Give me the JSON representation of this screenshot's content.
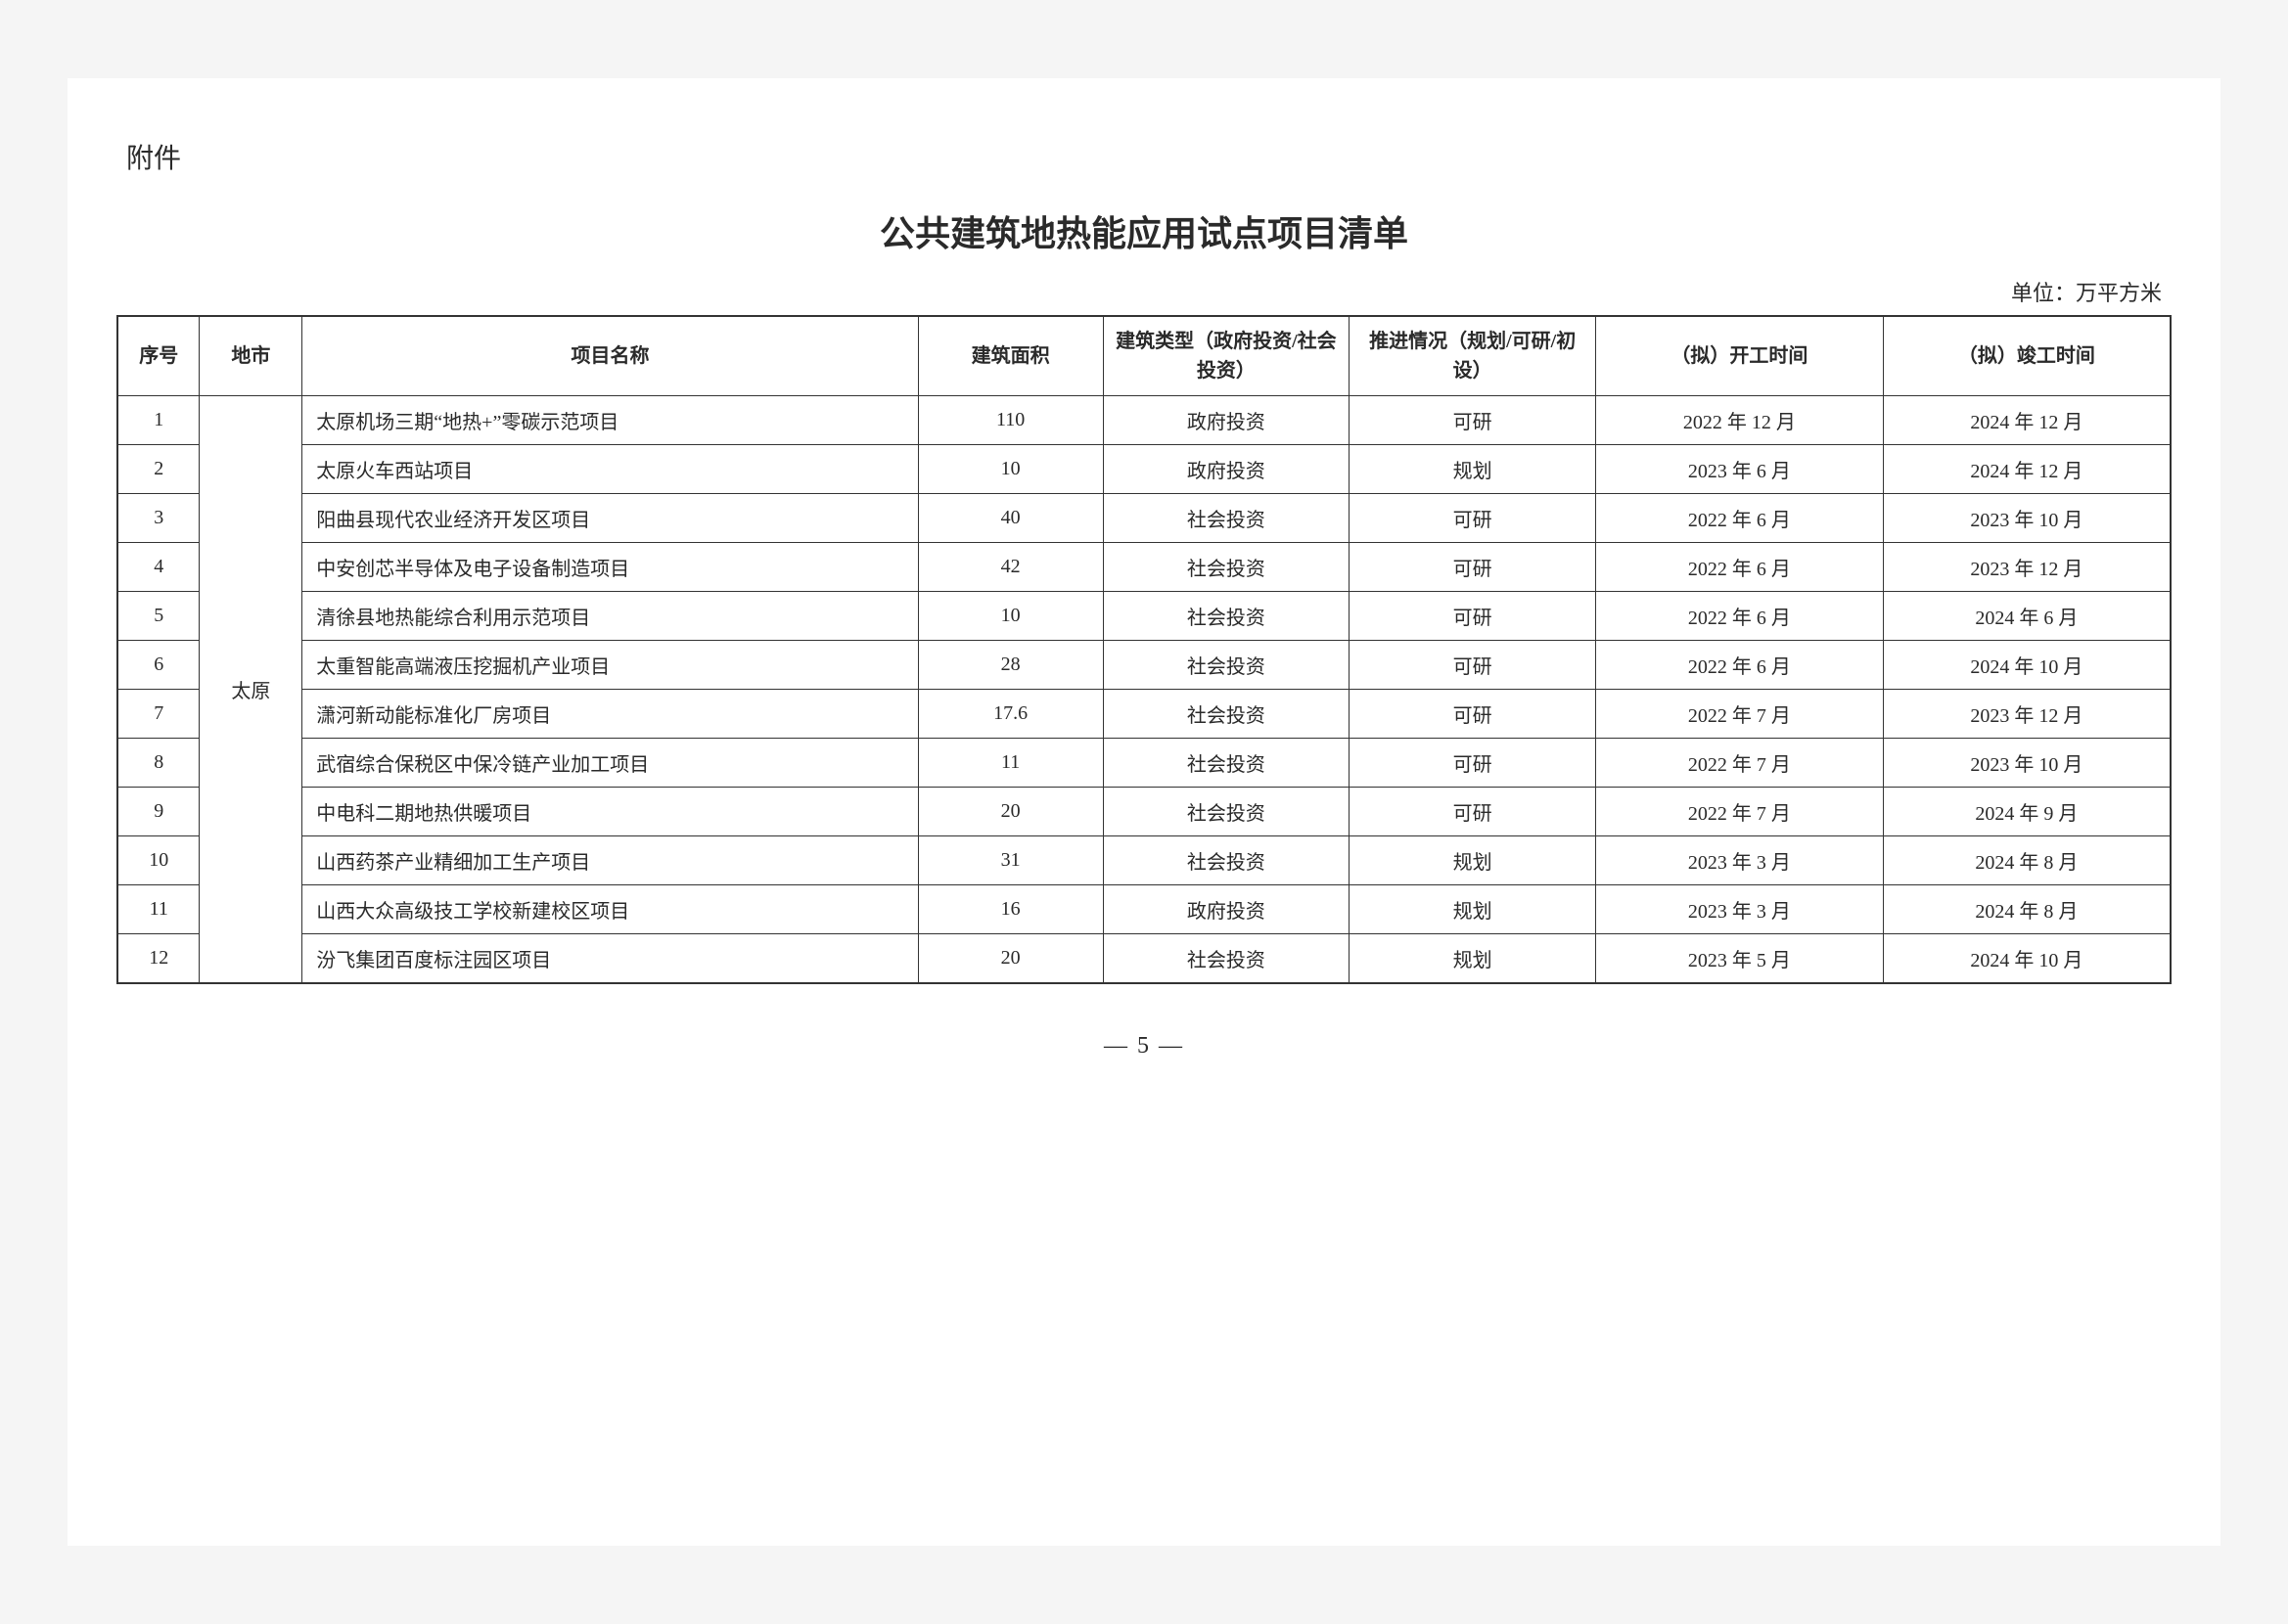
{
  "appendix_label": "附件",
  "title": "公共建筑地热能应用试点项目清单",
  "unit_label": "单位：万平方米",
  "page_number": "— 5 —",
  "table": {
    "columns": [
      {
        "key": "seq",
        "label": "序号",
        "width": "4%",
        "align": "center"
      },
      {
        "key": "city",
        "label": "地市",
        "width": "5%",
        "align": "center"
      },
      {
        "key": "name",
        "label": "项目名称",
        "width": "30%",
        "align": "left"
      },
      {
        "key": "area",
        "label": "建筑面积",
        "width": "9%",
        "align": "center"
      },
      {
        "key": "type",
        "label": "建筑类型（政府投资/社会投资）",
        "width": "12%",
        "align": "center"
      },
      {
        "key": "status",
        "label": "推进情况（规划/可研/初设）",
        "width": "12%",
        "align": "center"
      },
      {
        "key": "start",
        "label": "（拟）开工时间",
        "width": "14%",
        "align": "center"
      },
      {
        "key": "end",
        "label": "（拟）竣工时间",
        "width": "14%",
        "align": "center"
      }
    ],
    "city_span": {
      "city": "太原",
      "rowspan": 12
    },
    "rows": [
      {
        "seq": "1",
        "name": "太原机场三期“地热+”零碳示范项目",
        "area": "110",
        "type": "政府投资",
        "status": "可研",
        "start": "2022 年 12 月",
        "end": "2024 年 12 月"
      },
      {
        "seq": "2",
        "name": "太原火车西站项目",
        "area": "10",
        "type": "政府投资",
        "status": "规划",
        "start": "2023 年 6 月",
        "end": "2024 年 12 月"
      },
      {
        "seq": "3",
        "name": "阳曲县现代农业经济开发区项目",
        "area": "40",
        "type": "社会投资",
        "status": "可研",
        "start": "2022 年 6 月",
        "end": "2023 年 10 月"
      },
      {
        "seq": "4",
        "name": "中安创芯半导体及电子设备制造项目",
        "area": "42",
        "type": "社会投资",
        "status": "可研",
        "start": "2022 年 6 月",
        "end": "2023 年 12 月"
      },
      {
        "seq": "5",
        "name": "清徐县地热能综合利用示范项目",
        "area": "10",
        "type": "社会投资",
        "status": "可研",
        "start": "2022 年 6 月",
        "end": "2024 年 6 月"
      },
      {
        "seq": "6",
        "name": "太重智能高端液压挖掘机产业项目",
        "area": "28",
        "type": "社会投资",
        "status": "可研",
        "start": "2022 年 6 月",
        "end": "2024 年 10 月"
      },
      {
        "seq": "7",
        "name": "潇河新动能标准化厂房项目",
        "area": "17.6",
        "type": "社会投资",
        "status": "可研",
        "start": "2022 年 7 月",
        "end": "2023 年 12 月"
      },
      {
        "seq": "8",
        "name": "武宿综合保税区中保冷链产业加工项目",
        "area": "11",
        "type": "社会投资",
        "status": "可研",
        "start": "2022 年 7 月",
        "end": "2023 年 10 月"
      },
      {
        "seq": "9",
        "name": "中电科二期地热供暖项目",
        "area": "20",
        "type": "社会投资",
        "status": "可研",
        "start": "2022 年 7 月",
        "end": "2024 年 9 月"
      },
      {
        "seq": "10",
        "name": "山西药茶产业精细加工生产项目",
        "area": "31",
        "type": "社会投资",
        "status": "规划",
        "start": "2023 年 3 月",
        "end": "2024 年 8 月"
      },
      {
        "seq": "11",
        "name": "山西大众高级技工学校新建校区项目",
        "area": "16",
        "type": "政府投资",
        "status": "规划",
        "start": "2023 年 3 月",
        "end": "2024 年 8 月"
      },
      {
        "seq": "12",
        "name": "汾飞集团百度标注园区项目",
        "area": "20",
        "type": "社会投资",
        "status": "规划",
        "start": "2023 年 5 月",
        "end": "2024 年 10 月"
      }
    ],
    "border_color": "#333333",
    "font_size_header": 20,
    "font_size_cell": 20,
    "background_color": "#ffffff"
  }
}
